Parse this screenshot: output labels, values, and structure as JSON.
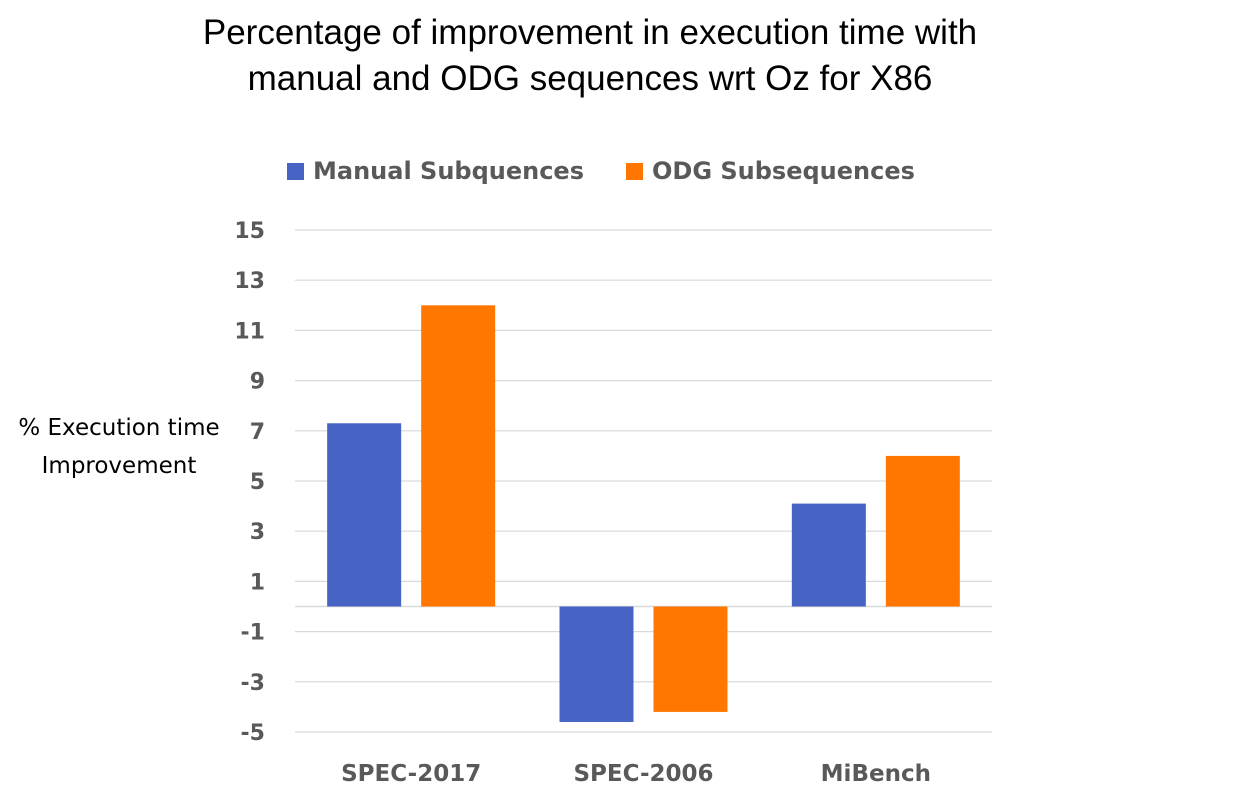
{
  "chart_data": {
    "type": "bar",
    "title_lines": [
      "Percentage of improvement in execution time with",
      "manual and ODG sequences wrt Oz for X86"
    ],
    "ylabel_lines": [
      "% Execution time",
      "Improvement"
    ],
    "xlabel": "",
    "categories": [
      "SPEC-2017",
      "SPEC-2006",
      "MiBench"
    ],
    "series": [
      {
        "name": "Manual Subquences",
        "color": "#4763C4",
        "values": [
          7.3,
          -4.6,
          4.1
        ]
      },
      {
        "name": "ODG Subsequences",
        "color": "#FF7700",
        "values": [
          12.0,
          -4.2,
          6.0
        ]
      }
    ],
    "y_ticks": [
      15,
      13,
      11,
      9,
      7,
      5,
      3,
      1,
      -1,
      -3,
      -5
    ],
    "ylim": [
      -5,
      15
    ],
    "grid": true,
    "legend_position": "top",
    "grid_color": "#D9D9D9",
    "axis_color": "#D9D9D9",
    "tick_label_color": "#595959"
  }
}
